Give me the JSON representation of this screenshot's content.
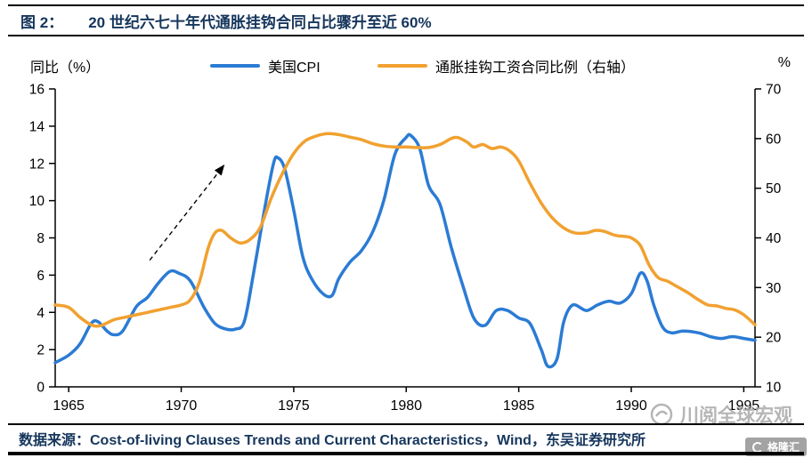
{
  "header": {
    "figure_label": "图 2：",
    "title": "20 世纪六七十年代通胀挂钩合同占比骤升至近 60%"
  },
  "footer": {
    "source": "数据来源：Cost-of-living Clauses Trends and Current Characteristics，Wind，东吴证券研究所"
  },
  "watermark": {
    "brand_text": "川阅全球宏观",
    "logo_badge": "格隆汇"
  },
  "colors": {
    "title_navy": "#16365C",
    "cpi_blue": "#2B7BD4",
    "cola_orange": "#F1A130",
    "axis_black": "#000000",
    "watermark_gray": "#a9a9a9"
  },
  "chart_data": {
    "type": "line",
    "title": "20 世纪六七十年代通胀挂钩合同占比骤升至近 60%",
    "x_range": [
      1964.4,
      1995.5
    ],
    "x_ticks": [
      1965,
      1970,
      1975,
      1980,
      1985,
      1990,
      1995
    ],
    "grid": false,
    "legend_position": "top",
    "left_axis": {
      "label": "同比（%）",
      "range": [
        0,
        16
      ],
      "ticks": [
        0,
        2,
        4,
        6,
        8,
        10,
        12,
        14,
        16
      ]
    },
    "right_axis": {
      "label": "%",
      "range": [
        10,
        70
      ],
      "ticks": [
        10,
        20,
        30,
        40,
        50,
        60,
        70
      ]
    },
    "series": [
      {
        "name": "美国CPI",
        "axis": "left",
        "color": "#2B7BD4",
        "points": [
          [
            1964.4,
            1.3
          ],
          [
            1965,
            1.7
          ],
          [
            1965.5,
            2.3
          ],
          [
            1966,
            3.4
          ],
          [
            1966.3,
            3.5
          ],
          [
            1966.7,
            3.0
          ],
          [
            1967,
            2.8
          ],
          [
            1967.4,
            3.0
          ],
          [
            1968,
            4.3
          ],
          [
            1968.5,
            4.8
          ],
          [
            1969,
            5.6
          ],
          [
            1969.5,
            6.2
          ],
          [
            1969.9,
            6.1
          ],
          [
            1970.4,
            5.7
          ],
          [
            1971,
            4.3
          ],
          [
            1971.5,
            3.4
          ],
          [
            1972,
            3.1
          ],
          [
            1972.4,
            3.1
          ],
          [
            1972.8,
            3.5
          ],
          [
            1973.2,
            6.0
          ],
          [
            1973.7,
            9.5
          ],
          [
            1974.1,
            12.0
          ],
          [
            1974.3,
            12.3
          ],
          [
            1974.6,
            11.7
          ],
          [
            1975,
            9.5
          ],
          [
            1975.4,
            7.0
          ],
          [
            1975.8,
            5.8
          ],
          [
            1976.3,
            5.0
          ],
          [
            1976.7,
            4.9
          ],
          [
            1977,
            5.8
          ],
          [
            1977.5,
            6.7
          ],
          [
            1978,
            7.3
          ],
          [
            1978.5,
            8.3
          ],
          [
            1979,
            10.0
          ],
          [
            1979.5,
            12.5
          ],
          [
            1980,
            13.4
          ],
          [
            1980.2,
            13.5
          ],
          [
            1980.6,
            12.8
          ],
          [
            1981,
            10.8
          ],
          [
            1981.5,
            9.8
          ],
          [
            1982,
            7.5
          ],
          [
            1982.5,
            5.5
          ],
          [
            1983,
            3.7
          ],
          [
            1983.5,
            3.3
          ],
          [
            1984,
            4.1
          ],
          [
            1984.5,
            4.1
          ],
          [
            1985,
            3.7
          ],
          [
            1985.5,
            3.4
          ],
          [
            1986,
            2.0
          ],
          [
            1986.3,
            1.1
          ],
          [
            1986.7,
            1.5
          ],
          [
            1987,
            3.5
          ],
          [
            1987.4,
            4.4
          ],
          [
            1988,
            4.1
          ],
          [
            1988.5,
            4.4
          ],
          [
            1989,
            4.6
          ],
          [
            1989.5,
            4.5
          ],
          [
            1990,
            5.0
          ],
          [
            1990.4,
            6.1
          ],
          [
            1990.7,
            5.7
          ],
          [
            1991,
            4.4
          ],
          [
            1991.4,
            3.2
          ],
          [
            1991.8,
            2.9
          ],
          [
            1992.3,
            3.0
          ],
          [
            1993,
            2.9
          ],
          [
            1993.5,
            2.7
          ],
          [
            1994,
            2.6
          ],
          [
            1994.5,
            2.7
          ],
          [
            1995,
            2.6
          ],
          [
            1995.5,
            2.5
          ]
        ]
      },
      {
        "name": "通胀挂钩工资合同比例（右轴）",
        "axis": "right",
        "color": "#F1A130",
        "points": [
          [
            1964.4,
            26.5
          ],
          [
            1965,
            26
          ],
          [
            1965.5,
            24
          ],
          [
            1966,
            22.5
          ],
          [
            1966.4,
            22.3
          ],
          [
            1967,
            23.5
          ],
          [
            1967.5,
            24
          ],
          [
            1968,
            24.5
          ],
          [
            1968.5,
            25
          ],
          [
            1969,
            25.5
          ],
          [
            1969.5,
            26
          ],
          [
            1970,
            26.5
          ],
          [
            1970.4,
            27.5
          ],
          [
            1970.8,
            31
          ],
          [
            1971.2,
            38
          ],
          [
            1971.5,
            41
          ],
          [
            1971.8,
            41.5
          ],
          [
            1972.2,
            40
          ],
          [
            1972.6,
            39
          ],
          [
            1973,
            39.5
          ],
          [
            1973.5,
            42
          ],
          [
            1974,
            48
          ],
          [
            1974.5,
            53
          ],
          [
            1975,
            57
          ],
          [
            1975.5,
            59.5
          ],
          [
            1976,
            60.5
          ],
          [
            1976.5,
            61
          ],
          [
            1977,
            60.8
          ],
          [
            1977.5,
            60.3
          ],
          [
            1978,
            59.8
          ],
          [
            1978.5,
            59
          ],
          [
            1979,
            58.5
          ],
          [
            1979.5,
            58.3
          ],
          [
            1980,
            58.3
          ],
          [
            1980.5,
            58.2
          ],
          [
            1981,
            58.2
          ],
          [
            1981.5,
            58.8
          ],
          [
            1982,
            60
          ],
          [
            1982.3,
            60.2
          ],
          [
            1982.7,
            59.3
          ],
          [
            1983,
            58.3
          ],
          [
            1983.4,
            58.8
          ],
          [
            1983.8,
            58
          ],
          [
            1984.2,
            58.3
          ],
          [
            1984.6,
            57.5
          ],
          [
            1985,
            55.5
          ],
          [
            1985.5,
            51
          ],
          [
            1986,
            47
          ],
          [
            1986.5,
            44
          ],
          [
            1987,
            42
          ],
          [
            1987.5,
            41
          ],
          [
            1988,
            41
          ],
          [
            1988.4,
            41.5
          ],
          [
            1988.8,
            41.3
          ],
          [
            1989.3,
            40.5
          ],
          [
            1989.7,
            40.3
          ],
          [
            1990,
            40
          ],
          [
            1990.4,
            38.5
          ],
          [
            1990.8,
            34.5
          ],
          [
            1991.2,
            32
          ],
          [
            1991.6,
            31.3
          ],
          [
            1992,
            30.3
          ],
          [
            1992.5,
            29
          ],
          [
            1993,
            27.5
          ],
          [
            1993.4,
            26.5
          ],
          [
            1993.8,
            26.3
          ],
          [
            1994.2,
            25.8
          ],
          [
            1994.6,
            25.5
          ],
          [
            1995,
            24.5
          ],
          [
            1995.5,
            22.5
          ]
        ]
      }
    ],
    "annotation_arrow": {
      "from": [
        1968.6,
        6.8
      ],
      "to": [
        1971.9,
        11.9
      ],
      "style": "dashed"
    }
  }
}
